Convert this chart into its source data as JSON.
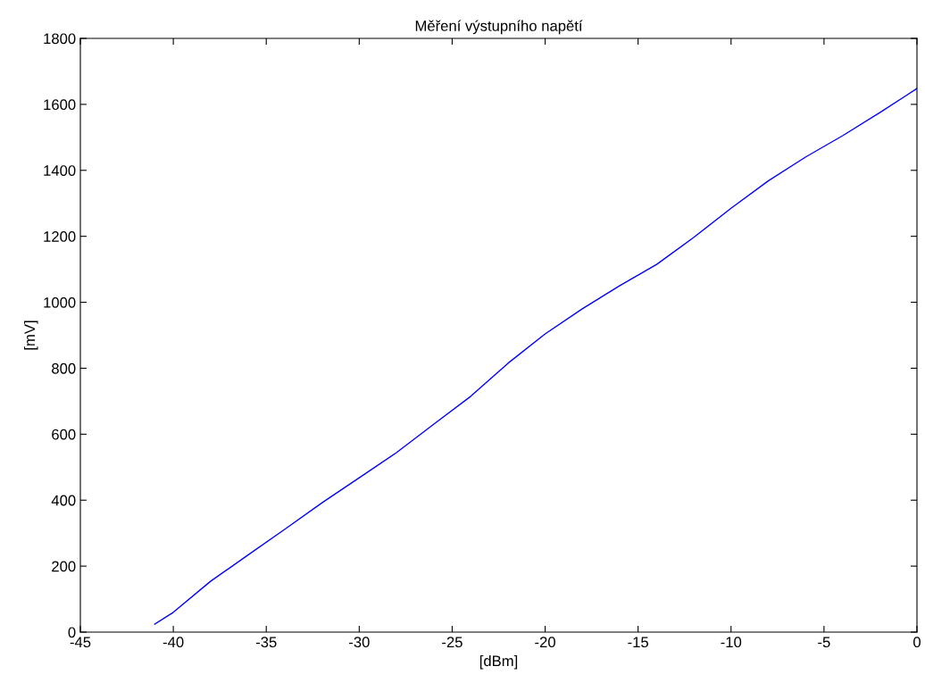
{
  "chart_data": {
    "type": "line",
    "title": "Měření výstupního napětí",
    "xlabel": "[dBm]",
    "ylabel": "[mV]",
    "x": [
      -41,
      -40,
      -38,
      -36,
      -34,
      -32,
      -30,
      -28,
      -26,
      -24,
      -22,
      -20,
      -18,
      -16,
      -14,
      -12,
      -10,
      -8,
      -6,
      -4,
      -2,
      0
    ],
    "series": [
      {
        "color": "#0000ff",
        "values": [
          24,
          60,
          154,
          233,
          312,
          392,
          468,
          544,
          630,
          715,
          815,
          904,
          980,
          1050,
          1115,
          1197,
          1285,
          1368,
          1440,
          1505,
          1575,
          1648
        ]
      }
    ],
    "xlim": [
      -45,
      0
    ],
    "ylim": [
      0,
      1800
    ],
    "xticks": [
      -45,
      -40,
      -35,
      -30,
      -25,
      -20,
      -15,
      -10,
      -5,
      0
    ],
    "yticks": [
      0,
      200,
      400,
      600,
      800,
      1000,
      1200,
      1400,
      1600,
      1800
    ],
    "grid": false,
    "legend": false,
    "marker": "none",
    "line_style": "solid"
  }
}
